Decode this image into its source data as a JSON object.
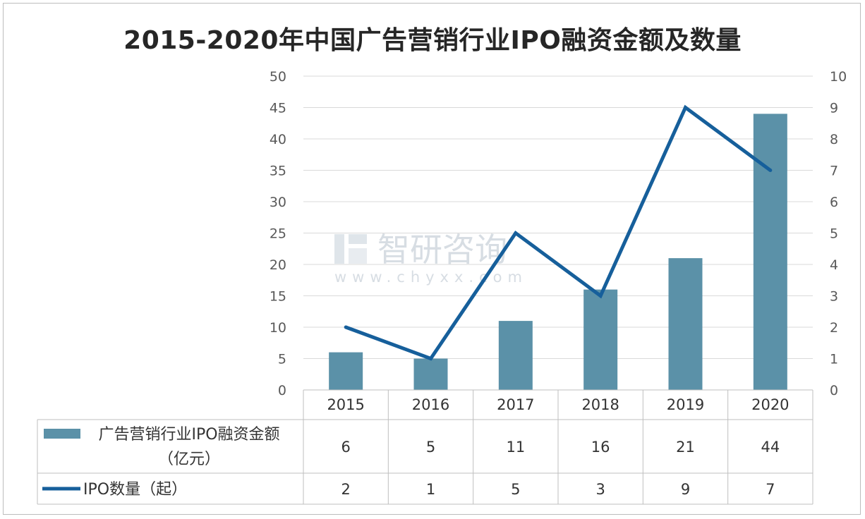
{
  "chart_data": {
    "type": "bar",
    "title": "2015-2020年中国广告营销行业IPO融资金额及数量",
    "categories": [
      "2015",
      "2016",
      "2017",
      "2018",
      "2019",
      "2020"
    ],
    "series": [
      {
        "name": "广告营销行业IPO融资金额",
        "name_line2": "（亿元）",
        "type": "bar",
        "axis": "left",
        "values": [
          6,
          5,
          11,
          16,
          21,
          44
        ],
        "color": "#5b91a8"
      },
      {
        "name": "IPO数量（起）",
        "type": "line",
        "axis": "right",
        "values": [
          2,
          1,
          5,
          3,
          9,
          7
        ],
        "color": "#165f9b"
      }
    ],
    "y_left": {
      "ylim": [
        0,
        50
      ],
      "ticks": [
        "0",
        "5",
        "10",
        "15",
        "20",
        "25",
        "30",
        "35",
        "40",
        "45",
        "50"
      ]
    },
    "y_right": {
      "ylim": [
        0,
        10
      ],
      "ticks": [
        "0",
        "1",
        "2",
        "3",
        "4",
        "5",
        "6",
        "7",
        "8",
        "9",
        "10"
      ]
    },
    "grid": true,
    "data_table": true
  },
  "watermark": {
    "text": "智研咨询",
    "url": "www.chyxx.com"
  }
}
